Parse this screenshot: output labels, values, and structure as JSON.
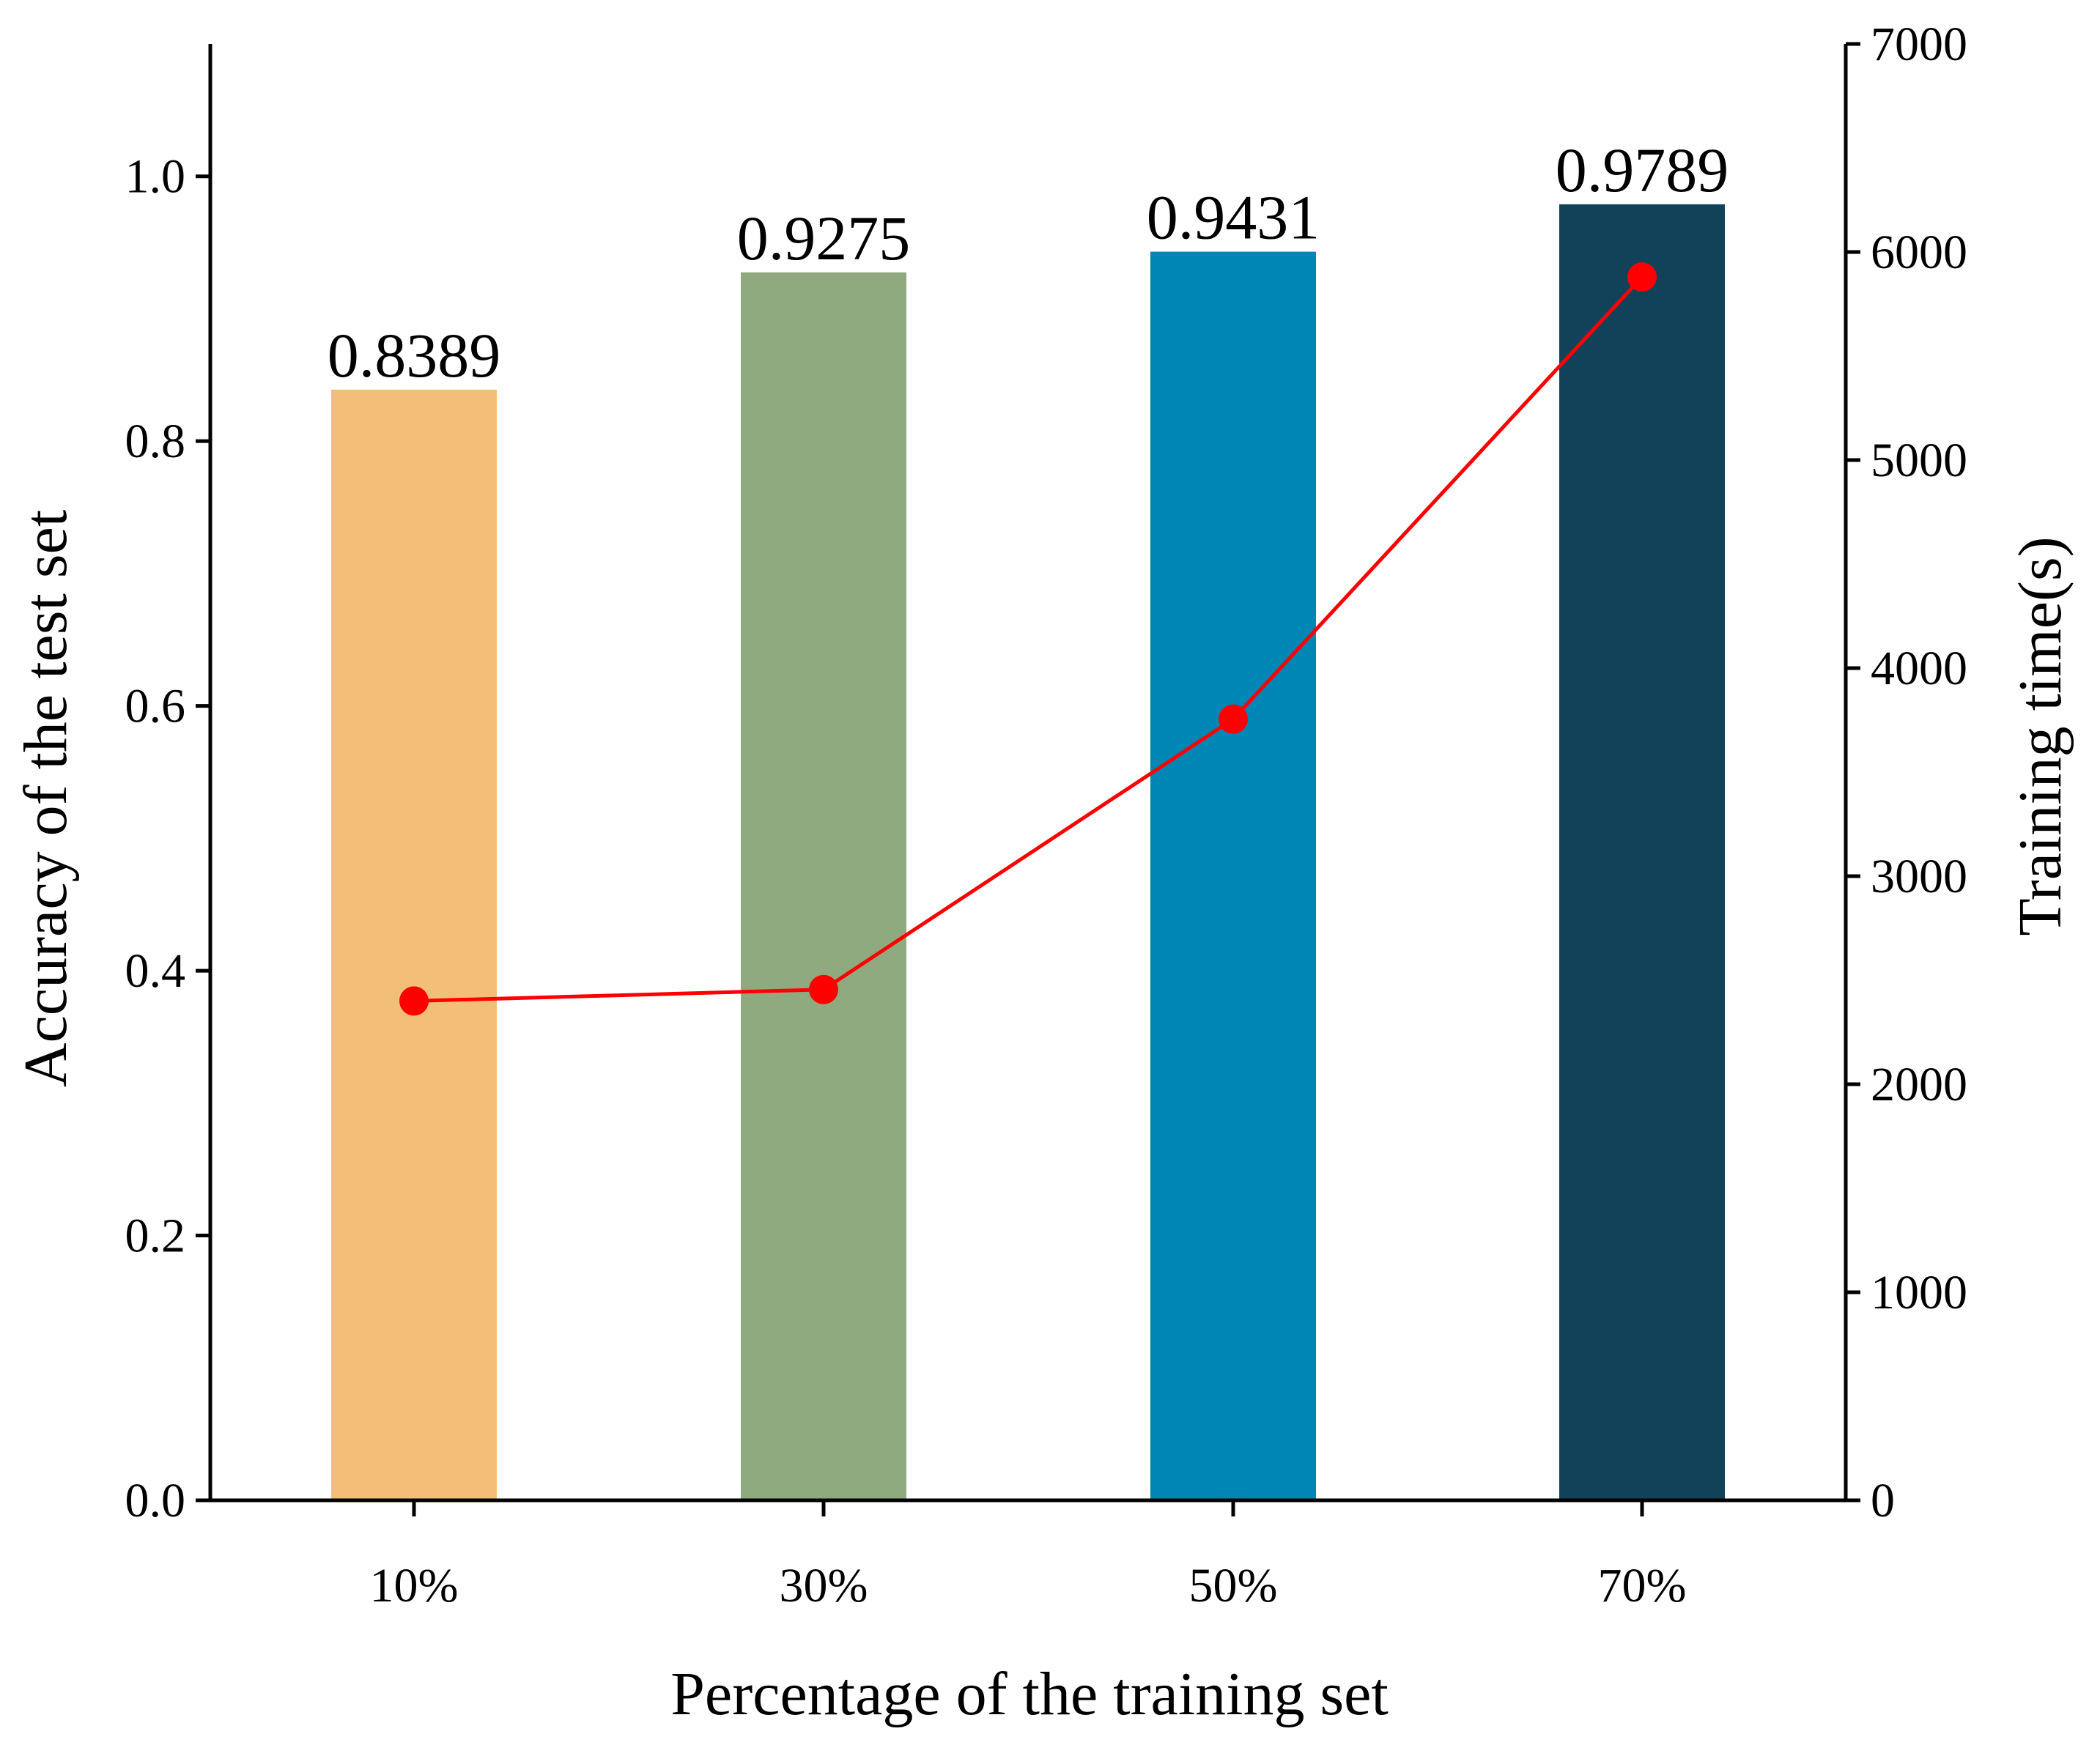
{
  "chart_data": {
    "type": "bar",
    "title": "",
    "xlabel": "Percentage of the training set",
    "ylabel": "Accuracy of the test set",
    "y2label": "Training time(s)",
    "categories": [
      "10%",
      "30%",
      "50%",
      "70%"
    ],
    "ylim": [
      0,
      1.1
    ],
    "y2lim": [
      0,
      7000
    ],
    "yticks": [
      0.0,
      0.2,
      0.4,
      0.6,
      0.8,
      1.0
    ],
    "yticklabels": [
      "0.0",
      "0.2",
      "0.4",
      "0.6",
      "0.8",
      "1.0"
    ],
    "y2ticks": [
      0,
      1000,
      2000,
      3000,
      4000,
      5000,
      6000,
      7000
    ],
    "y2ticklabels": [
      "0",
      "1000",
      "2000",
      "3000",
      "4000",
      "5000",
      "6000",
      "7000"
    ],
    "grid": false,
    "series": [
      {
        "name": "Accuracy of the test set",
        "type": "bar",
        "axis": "left",
        "values": [
          0.8389,
          0.9275,
          0.9431,
          0.9789
        ],
        "labels": [
          "0.8389",
          "0.9275",
          "0.9431",
          "0.9789"
        ],
        "colors": [
          "#f2bf78",
          "#8faa7e",
          "#0086b5",
          "#12425a"
        ]
      },
      {
        "name": "Training time(s)",
        "type": "line",
        "axis": "right",
        "values": [
          2400,
          2455,
          3755,
          5880
        ],
        "color": "#ff0000"
      }
    ]
  }
}
